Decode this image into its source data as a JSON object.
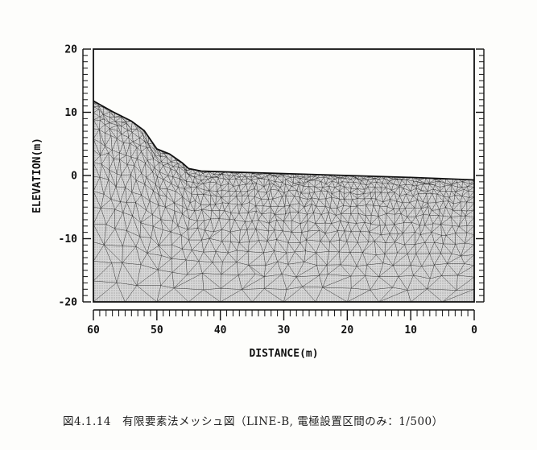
{
  "chart_data": {
    "type": "mesh",
    "xlabel": "DISTANCE(m)",
    "ylabel": "ELEVATION(m)",
    "xlim": [
      60,
      0
    ],
    "ylim": [
      -20,
      20
    ],
    "x_ticks": [
      60,
      50,
      40,
      30,
      20,
      10,
      0
    ],
    "y_ticks": [
      20,
      10,
      0,
      -10,
      -20
    ],
    "ground_surface": {
      "x": [
        60,
        57,
        54,
        52,
        50,
        48,
        46,
        45,
        43,
        40,
        30,
        20,
        10,
        5,
        0
      ],
      "y": [
        11.8,
        10.1,
        8.6,
        7.1,
        4.2,
        3.4,
        2.0,
        1.1,
        0.7,
        0.6,
        0.3,
        0.0,
        -0.3,
        -0.5,
        -0.7
      ]
    },
    "mesh_bottom": -20
  },
  "caption": "図4.1.14　有限要素法メッシュ図（LINE-B, 電極設置区間のみ：1/500）",
  "colors": {
    "stroke": "#111111",
    "mesh_fill": "#cfcfcf",
    "background": "#fdfdfb"
  }
}
